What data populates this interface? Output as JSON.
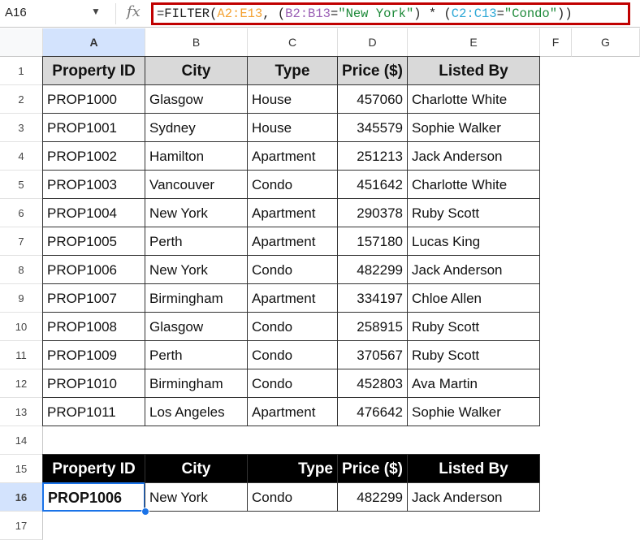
{
  "name_box": "A16",
  "formula": [
    {
      "t": "=FILTER(",
      "c": "#222"
    },
    {
      "t": "A2:E13",
      "c": "#f4a233"
    },
    {
      "t": ", (",
      "c": "#222"
    },
    {
      "t": "B2:B13",
      "c": "#9a5fb5"
    },
    {
      "t": "=",
      "c": "#222"
    },
    {
      "t": "\"New York\"",
      "c": "#1e8a3a"
    },
    {
      "t": ") * (",
      "c": "#222"
    },
    {
      "t": "C2:C13",
      "c": "#2aa7d6"
    },
    {
      "t": "=",
      "c": "#222"
    },
    {
      "t": "\"Condo\"",
      "c": "#1e8a3a"
    },
    {
      "t": "))",
      "c": "#222"
    }
  ],
  "columns": [
    "A",
    "B",
    "C",
    "D",
    "E",
    "F",
    "G"
  ],
  "rows": [
    "1",
    "2",
    "3",
    "4",
    "5",
    "6",
    "7",
    "8",
    "9",
    "10",
    "11",
    "12",
    "13",
    "14",
    "15",
    "16",
    "17"
  ],
  "headers": [
    "Property ID",
    "City",
    "Type",
    "Price ($)",
    "Listed By"
  ],
  "table": [
    [
      "PROP1000",
      "Glasgow",
      "House",
      "457060",
      "Charlotte White"
    ],
    [
      "PROP1001",
      "Sydney",
      "House",
      "345579",
      "Sophie Walker"
    ],
    [
      "PROP1002",
      "Hamilton",
      "Apartment",
      "251213",
      "Jack Anderson"
    ],
    [
      "PROP1003",
      "Vancouver",
      "Condo",
      "451642",
      "Charlotte White"
    ],
    [
      "PROP1004",
      "New York",
      "Apartment",
      "290378",
      "Ruby Scott"
    ],
    [
      "PROP1005",
      "Perth",
      "Apartment",
      "157180",
      "Lucas King"
    ],
    [
      "PROP1006",
      "New York",
      "Condo",
      "482299",
      "Jack Anderson"
    ],
    [
      "PROP1007",
      "Birmingham",
      "Apartment",
      "334197",
      "Chloe Allen"
    ],
    [
      "PROP1008",
      "Glasgow",
      "Condo",
      "258915",
      "Ruby Scott"
    ],
    [
      "PROP1009",
      "Perth",
      "Condo",
      "370567",
      "Ruby Scott"
    ],
    [
      "PROP1010",
      "Birmingham",
      "Condo",
      "452803",
      "Ava Martin"
    ],
    [
      "PROP1011",
      "Los Angeles",
      "Apartment",
      "476642",
      "Sophie Walker"
    ]
  ],
  "result": [
    [
      "PROP1006",
      "New York",
      "Condo",
      "482299",
      "Jack Anderson"
    ]
  ],
  "colors": {
    "header_bg": "#d9d9d9",
    "result_header_bg": "#000000",
    "selection": "#1a73e8",
    "formula_border": "#c00000"
  }
}
